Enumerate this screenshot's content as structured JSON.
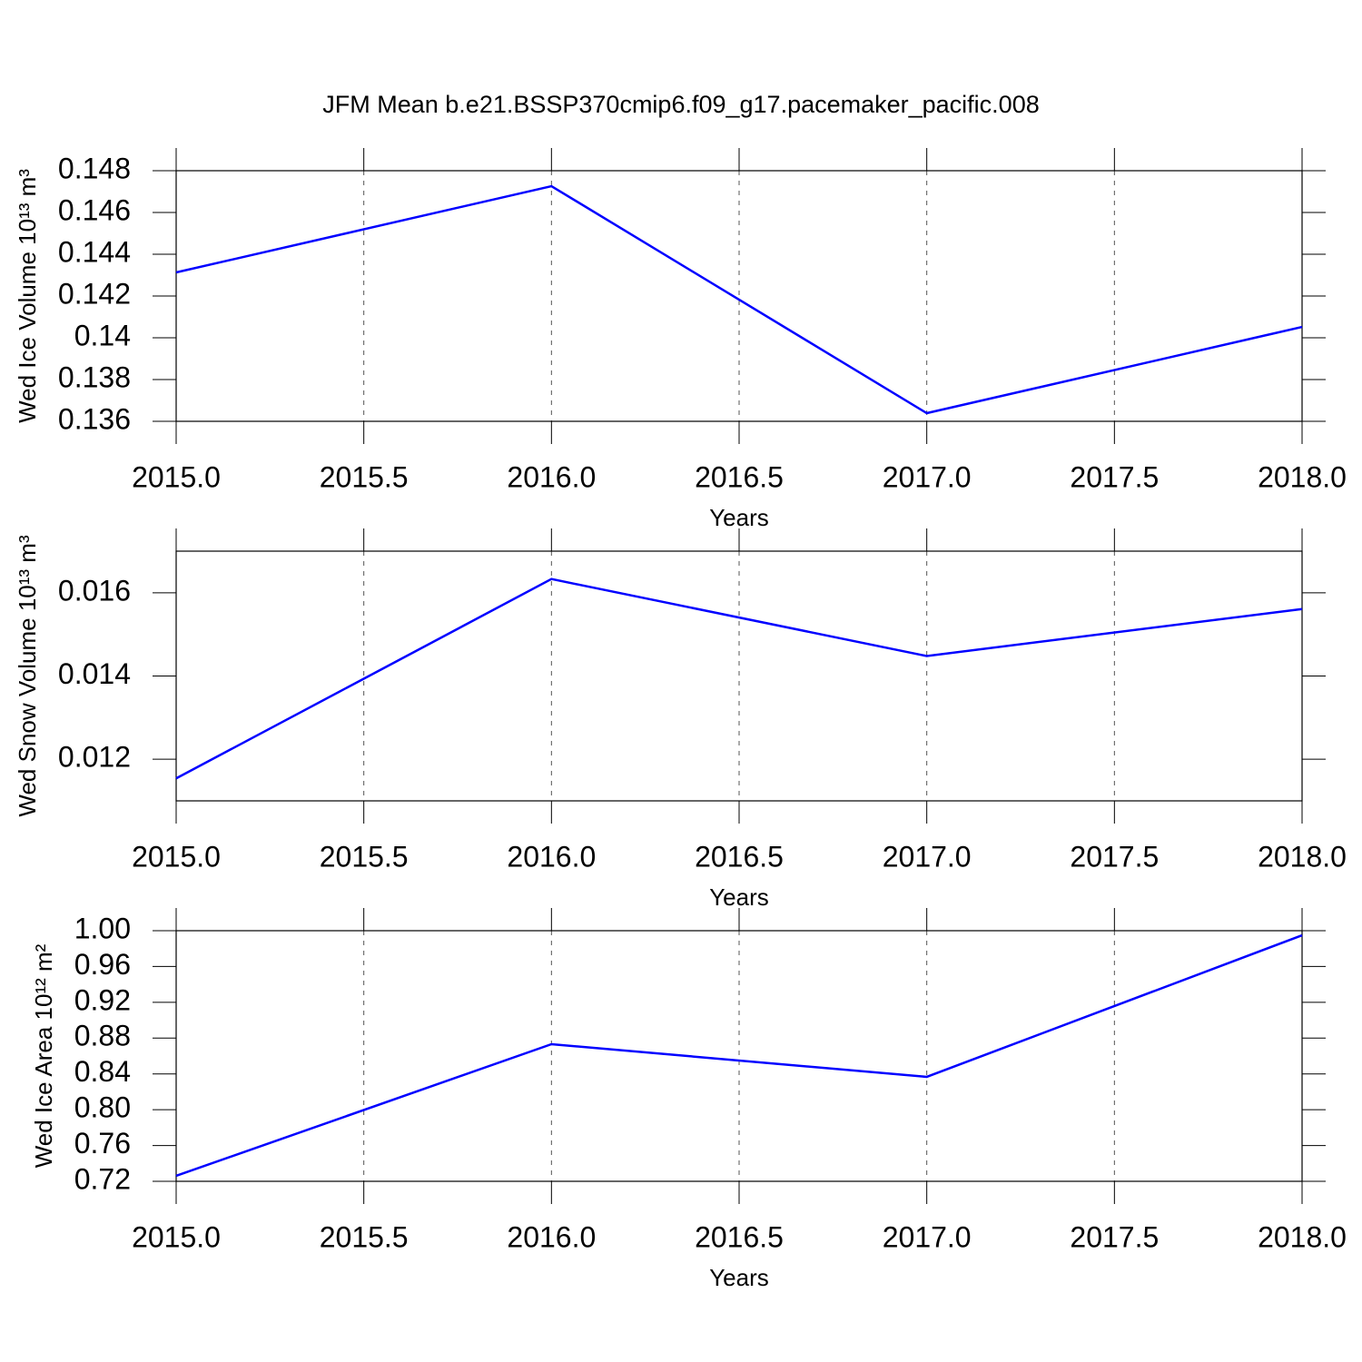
{
  "chart_data": [
    {
      "type": "line",
      "title": "JFM Mean b.e21.BSSP370cmip6.f09_g17.pacemaker_pacific.008",
      "x": [
        2015,
        2016,
        2017,
        2018
      ],
      "xlabel": "Years",
      "ylabel": "Wed Ice Volume 10¹³ m³",
      "series": [
        {
          "color": "#0000ff",
          "values": [
            0.14313,
            0.14726,
            0.13639,
            0.14052
          ]
        }
      ],
      "xlim": [
        2015,
        2018
      ],
      "xticks": [
        {
          "value": 2015,
          "label": "2015.0"
        },
        {
          "value": 2015.5,
          "label": "2015.5"
        },
        {
          "value": 2016,
          "label": "2016.0"
        },
        {
          "value": 2016.5,
          "label": "2016.5"
        },
        {
          "value": 2017,
          "label": "2017.0"
        },
        {
          "value": 2017.5,
          "label": "2017.5"
        },
        {
          "value": 2018,
          "label": "2018.0"
        }
      ],
      "ylim": [
        0.136,
        0.148
      ],
      "yticks": [
        0.136,
        0.138,
        0.14,
        0.142,
        0.144,
        0.146,
        0.148
      ],
      "grid": "x"
    },
    {
      "type": "line",
      "x": [
        2015,
        2016,
        2017,
        2018
      ],
      "xlabel": "Years",
      "ylabel": "Wed Snow Volume 10¹³ m³",
      "series": [
        {
          "color": "#0000ff",
          "values": [
            0.01154,
            0.01633,
            0.01448,
            0.01561
          ]
        }
      ],
      "xlim": [
        2015,
        2018
      ],
      "xticks": [
        {
          "value": 2015,
          "label": "2015.0"
        },
        {
          "value": 2015.5,
          "label": "2015.5"
        },
        {
          "value": 2016,
          "label": "2016.0"
        },
        {
          "value": 2016.5,
          "label": "2016.5"
        },
        {
          "value": 2017,
          "label": "2017.0"
        },
        {
          "value": 2017.5,
          "label": "2017.5"
        },
        {
          "value": 2018,
          "label": "2018.0"
        }
      ],
      "ylim": [
        0.011,
        0.017
      ],
      "yticks": [
        0.012,
        0.014,
        0.016
      ],
      "grid": "x"
    },
    {
      "type": "line",
      "x": [
        2015,
        2016,
        2017,
        2018
      ],
      "xlabel": "Years",
      "ylabel": "Wed Ice Area 10¹² m²",
      "series": [
        {
          "color": "#0000ff",
          "values": [
            0.7261,
            0.8732,
            0.8367,
            0.9949
          ]
        }
      ],
      "xlim": [
        2015,
        2018
      ],
      "xticks": [
        {
          "value": 2015,
          "label": "2015.0"
        },
        {
          "value": 2015.5,
          "label": "2015.5"
        },
        {
          "value": 2016,
          "label": "2016.0"
        },
        {
          "value": 2016.5,
          "label": "2016.5"
        },
        {
          "value": 2017,
          "label": "2017.0"
        },
        {
          "value": 2017.5,
          "label": "2017.5"
        },
        {
          "value": 2018,
          "label": "2018.0"
        }
      ],
      "ylim": [
        0.72,
        1.0
      ],
      "yticks": [
        0.72,
        0.76,
        {
          "value": 0.8,
          "label": "0.80"
        },
        0.84,
        0.88,
        0.92,
        0.96,
        {
          "value": 1.0,
          "label": "1.00"
        }
      ],
      "grid": "x"
    }
  ]
}
